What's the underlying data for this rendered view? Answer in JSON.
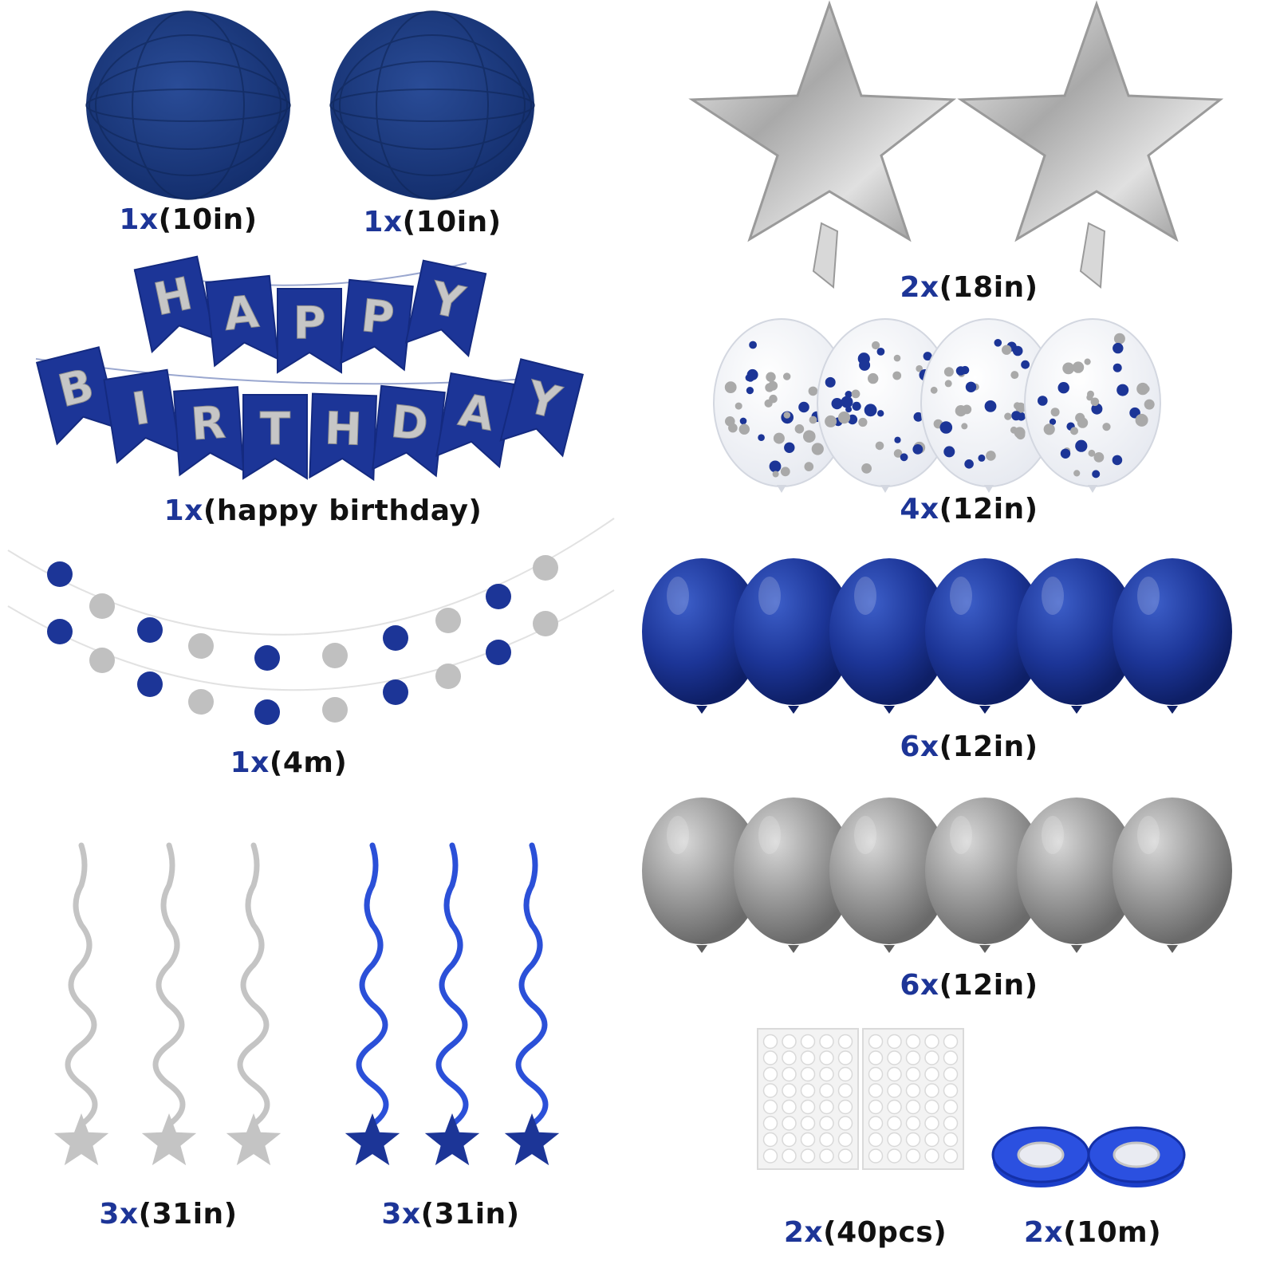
{
  "colors": {
    "navy": "#1f3a8a",
    "royal_blue": "#1c3597",
    "silver": "#c0c0c0",
    "label_quantity": "#1d3597",
    "label_text": "#111111",
    "background": "#ffffff"
  },
  "items": {
    "paper_lanterns": [
      {
        "icon": "paper-lantern-icon",
        "qty": "1x",
        "size": "(10in)"
      },
      {
        "icon": "paper-lantern-icon",
        "qty": "1x",
        "size": "(10in)"
      }
    ],
    "star_foil_balloons": {
      "icon": "star-foil-balloon-icon",
      "qty": "2x",
      "size": "(18in)"
    },
    "banner": {
      "icon": "pennant-banner-icon",
      "line1": [
        "H",
        "A",
        "P",
        "P",
        "Y"
      ],
      "line2": [
        "B",
        "I",
        "R",
        "T",
        "H",
        "D",
        "A",
        "Y"
      ],
      "qty": "1x",
      "size": "(happy birthday)"
    },
    "confetti_balloons": {
      "icon": "confetti-balloon-icon",
      "qty": "4x",
      "size": "(12in)"
    },
    "circle_garland": {
      "icon": "circle-garland-icon",
      "qty": "1x",
      "size": "(4m)"
    },
    "blue_latex_balloons": {
      "icon": "blue-balloon-icon",
      "qty": "6x",
      "size": "(12in)"
    },
    "silver_latex_balloons": {
      "icon": "silver-balloon-icon",
      "qty": "6x",
      "size": "(12in)"
    },
    "silver_swirls": {
      "icon": "silver-swirl-icon",
      "qty": "3x",
      "size": "(31in)"
    },
    "blue_swirls": {
      "icon": "blue-swirl-icon",
      "qty": "3x",
      "size": "(31in)"
    },
    "glue_dots": {
      "icon": "glue-dot-sheet-icon",
      "qty": "2x",
      "size": "(40pcs)"
    },
    "ribbon": {
      "icon": "ribbon-roll-icon",
      "qty": "2x",
      "size": "(10m)"
    }
  }
}
